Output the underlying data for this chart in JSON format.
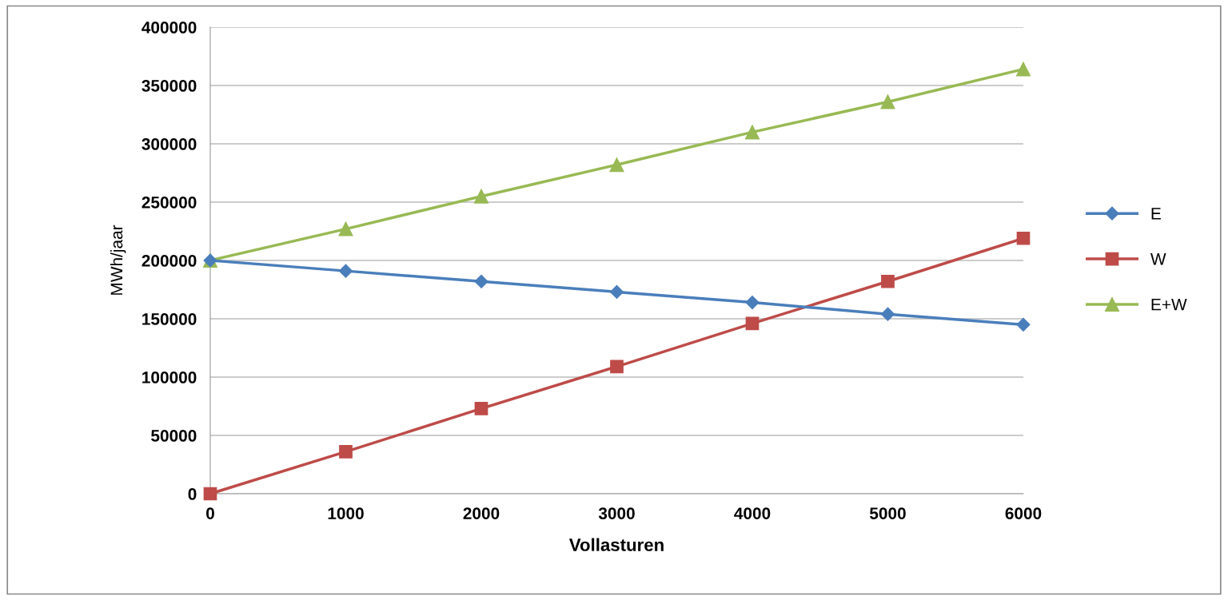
{
  "chart_data": {
    "type": "line",
    "xlabel": "Vollasturen",
    "ylabel": "MWh/jaar",
    "x": [
      0,
      1000,
      2000,
      3000,
      4000,
      5000,
      6000
    ],
    "xlim": [
      0,
      6000
    ],
    "xticks": [
      0,
      1000,
      2000,
      3000,
      4000,
      5000,
      6000
    ],
    "ylim": [
      0,
      400000
    ],
    "yticks": [
      0,
      50000,
      100000,
      150000,
      200000,
      250000,
      300000,
      350000,
      400000
    ],
    "grid": "y",
    "legend": "right",
    "line_style": "solid",
    "series": [
      {
        "name": "E",
        "color": "#4a7ebb",
        "marker": "diamond",
        "values": [
          200000,
          191000,
          182000,
          173000,
          164000,
          154000,
          145000
        ]
      },
      {
        "name": "W",
        "color": "#be4b48",
        "marker": "square",
        "values": [
          0,
          36000,
          73000,
          109000,
          146000,
          182000,
          219000
        ]
      },
      {
        "name": "E+W",
        "color": "#98b954",
        "marker": "triangle",
        "values": [
          200000,
          227000,
          255000,
          282000,
          310000,
          336000,
          364000
        ]
      }
    ]
  }
}
